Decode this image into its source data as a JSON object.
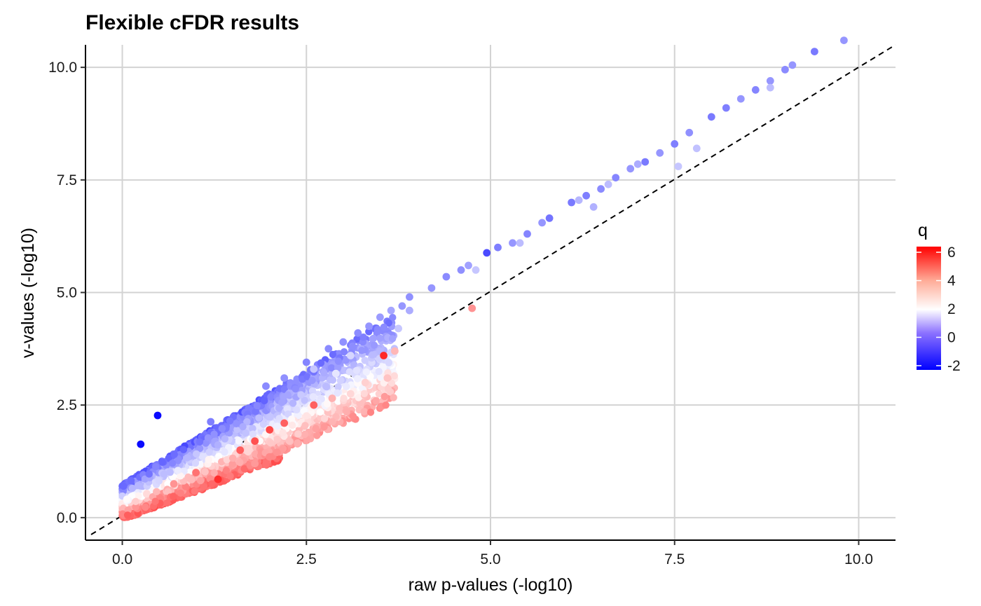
{
  "chart_data": {
    "type": "scatter",
    "title": "Flexible cFDR results",
    "xlabel": "raw p-values (-log10)",
    "ylabel": "v-values (-log10)",
    "xlim": [
      -0.5,
      10.5
    ],
    "ylim": [
      -0.5,
      10.5
    ],
    "x_ticks": [
      0,
      2.5,
      5,
      7.5,
      10
    ],
    "y_ticks": [
      0,
      2.5,
      5,
      7.5,
      10
    ],
    "x_tick_labels": [
      "0.0",
      "2.5",
      "5.0",
      "7.5",
      "10.0"
    ],
    "y_tick_labels": [
      "0.0",
      "2.5",
      "5.0",
      "7.5",
      "10.0"
    ],
    "grid": true,
    "reference_line": {
      "style": "dashed",
      "slope": 1,
      "intercept": 0
    },
    "legend": {
      "title": "q",
      "placement": "right",
      "type": "colorbar",
      "range": [
        -2.3,
        6.4
      ],
      "ticks": [
        -2,
        0,
        2,
        4,
        6
      ],
      "tick_labels": [
        "-2",
        "0",
        "2",
        "4",
        "6"
      ],
      "colors": {
        "low": "#0000ff",
        "mid": "#ffffff",
        "high": "#ff0000",
        "midpoint": 2
      }
    },
    "series": [
      {
        "points": [
          [
            0.25,
            1.63,
            -2.2
          ],
          [
            0.48,
            2.27,
            -2.2
          ],
          [
            1.2,
            2.13,
            -0.4
          ],
          [
            1.95,
            2.92,
            -0.2
          ],
          [
            2.2,
            3.1,
            -0.1
          ],
          [
            2.5,
            3.45,
            -0.3
          ],
          [
            2.8,
            3.75,
            -0.2
          ],
          [
            3.0,
            3.9,
            -0.1
          ],
          [
            3.2,
            4.1,
            -0.2
          ],
          [
            3.35,
            4.25,
            0.0
          ],
          [
            3.5,
            4.45,
            0.1
          ],
          [
            3.65,
            4.6,
            0.3
          ],
          [
            3.8,
            4.7,
            0.0
          ],
          [
            3.9,
            4.9,
            -0.1
          ],
          [
            4.2,
            5.1,
            0.0
          ],
          [
            4.4,
            5.35,
            -0.2
          ],
          [
            4.6,
            5.5,
            -0.1
          ],
          [
            4.7,
            5.6,
            0.2
          ],
          [
            4.95,
            5.88,
            -1.3
          ],
          [
            5.1,
            6.0,
            -0.4
          ],
          [
            5.3,
            6.1,
            0.0
          ],
          [
            5.5,
            6.3,
            -0.3
          ],
          [
            5.7,
            6.55,
            0.0
          ],
          [
            5.8,
            6.65,
            -0.6
          ],
          [
            6.1,
            7.0,
            -0.5
          ],
          [
            6.3,
            7.15,
            -0.4
          ],
          [
            6.5,
            7.3,
            -0.2
          ],
          [
            6.7,
            7.55,
            -0.3
          ],
          [
            6.9,
            7.75,
            0.0
          ],
          [
            7.1,
            7.9,
            -0.5
          ],
          [
            7.3,
            8.1,
            0.0
          ],
          [
            7.5,
            8.3,
            -0.4
          ],
          [
            7.7,
            8.55,
            -0.1
          ],
          [
            8.0,
            8.9,
            -0.5
          ],
          [
            8.2,
            9.1,
            -0.4
          ],
          [
            8.4,
            9.3,
            0.0
          ],
          [
            8.6,
            9.5,
            -0.3
          ],
          [
            8.8,
            9.7,
            0.0
          ],
          [
            9.0,
            9.95,
            -0.2
          ],
          [
            9.1,
            10.05,
            0.0
          ],
          [
            9.4,
            10.35,
            -0.5
          ],
          [
            9.8,
            10.6,
            0.0
          ],
          [
            3.5,
            3.7,
            0.6
          ],
          [
            3.9,
            4.6,
            0.4
          ],
          [
            3.75,
            4.2,
            0.9
          ],
          [
            4.8,
            5.5,
            0.9
          ],
          [
            5.4,
            6.1,
            0.7
          ],
          [
            6.4,
            6.9,
            0.5
          ],
          [
            6.6,
            7.4,
            0.7
          ],
          [
            7.55,
            7.8,
            0.9
          ],
          [
            7.8,
            8.2,
            0.8
          ],
          [
            8.8,
            9.55,
            0.7
          ],
          [
            6.2,
            7.05,
            0.6
          ],
          [
            7.0,
            7.85,
            0.4
          ],
          [
            2.6,
            3.3,
            0.9
          ],
          [
            2.9,
            3.2,
            1.5
          ],
          [
            3.1,
            3.6,
            1.2
          ],
          [
            4.75,
            4.65,
            3.6
          ],
          [
            3.6,
            3.1,
            2.8
          ],
          [
            3.7,
            3.7,
            3.0
          ],
          [
            3.55,
            3.6,
            5.6
          ],
          [
            3.3,
            3.0,
            2.6
          ],
          [
            3.1,
            2.75,
            2.5
          ],
          [
            2.85,
            2.65,
            3.1
          ],
          [
            2.6,
            2.5,
            4.5
          ],
          [
            2.2,
            2.1,
            4.5
          ],
          [
            2.0,
            1.95,
            5.0
          ],
          [
            1.8,
            1.7,
            4.8
          ],
          [
            1.6,
            1.5,
            4.6
          ],
          [
            1.3,
            0.85,
            5.5
          ],
          [
            1.0,
            1.0,
            4.2
          ],
          [
            0.7,
            0.75,
            3.6
          ],
          [
            2.1,
            1.45,
            3.6
          ],
          [
            2.0,
            1.35,
            3.8
          ],
          [
            1.8,
            1.2,
            3.5
          ]
        ]
      }
    ]
  }
}
